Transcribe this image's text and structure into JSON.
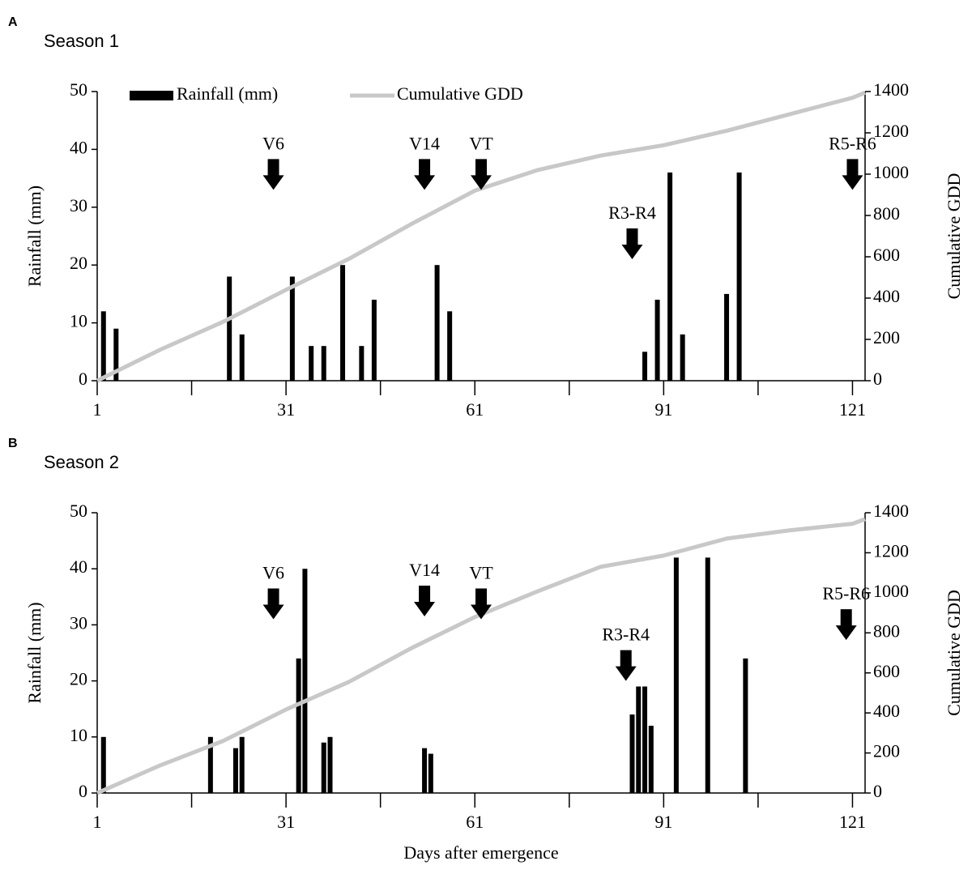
{
  "chart_data": [
    {
      "type": "bar",
      "panel_label": "A",
      "title": "Season 1",
      "y_label": "Rainfall (mm)",
      "y2_label": "Cumulative GDD",
      "xlim": [
        1,
        123
      ],
      "xticks": [
        1,
        31,
        61,
        91,
        121
      ],
      "xminorticks": [
        16,
        46,
        76,
        106
      ],
      "ylim": [
        0,
        50
      ],
      "yticks": [
        0,
        10,
        20,
        30,
        40,
        50
      ],
      "y2lim": [
        0,
        1400
      ],
      "y2ticks": [
        0,
        200,
        400,
        600,
        800,
        1000,
        1200,
        1400
      ],
      "series": [
        {
          "name": "Rainfall (mm)",
          "color": "#000000",
          "x": [
            2,
            4,
            22,
            24,
            32,
            35,
            37,
            40,
            43,
            45,
            55,
            57,
            88,
            90,
            92,
            94,
            101,
            103
          ],
          "values": [
            12,
            9,
            18,
            8,
            18,
            6,
            6,
            20,
            6,
            14,
            20,
            12,
            5,
            14,
            36,
            8,
            15,
            36
          ]
        },
        {
          "name": "Cumulative GDD",
          "color": "#c8c8c8",
          "axis": "y2",
          "x": [
            1,
            11,
            21,
            31,
            41,
            51,
            61,
            71,
            81,
            91,
            101,
            111,
            121,
            123
          ],
          "values": [
            0,
            150,
            285,
            440,
            590,
            760,
            920,
            1020,
            1090,
            1140,
            1210,
            1290,
            1370,
            1395
          ]
        }
      ],
      "annotations": [
        {
          "text": "V6",
          "x": 29,
          "y": 33
        },
        {
          "text": "V14",
          "x": 53,
          "y": 33
        },
        {
          "text": "VT",
          "x": 62,
          "y": 33
        },
        {
          "text": "R3-R4",
          "x": 86,
          "y": 21
        },
        {
          "text": "R5-R6",
          "x": 121,
          "y": 33
        }
      ]
    },
    {
      "type": "bar",
      "panel_label": "B",
      "title": "Season 2",
      "x_label": "Days after emergence",
      "y_label": "Rainfall (mm)",
      "y2_label": "Cumulative GDD",
      "xlim": [
        1,
        123
      ],
      "xticks": [
        1,
        31,
        61,
        91,
        121
      ],
      "xminorticks": [
        16,
        46,
        76,
        106
      ],
      "ylim": [
        0,
        50
      ],
      "yticks": [
        0,
        10,
        20,
        30,
        40,
        50
      ],
      "y2lim": [
        0,
        1400
      ],
      "y2ticks": [
        0,
        200,
        400,
        600,
        800,
        1000,
        1200,
        1400
      ],
      "series": [
        {
          "color": "#000000",
          "x": [
            2,
            19,
            23,
            24,
            33,
            34,
            37,
            38,
            53,
            54,
            86,
            87,
            88,
            89,
            93,
            98,
            104
          ],
          "values": [
            10,
            10,
            8,
            10,
            24,
            40,
            9,
            10,
            8,
            7,
            14,
            19,
            19,
            12,
            42,
            42,
            24
          ]
        },
        {
          "color": "#c8c8c8",
          "axis": "y2",
          "x": [
            1,
            11,
            21,
            31,
            41,
            51,
            61,
            71,
            81,
            91,
            101,
            111,
            121,
            123
          ],
          "values": [
            0,
            138,
            260,
            417,
            555,
            725,
            879,
            1008,
            1130,
            1186,
            1271,
            1312,
            1345,
            1368
          ]
        }
      ],
      "annotations": [
        {
          "text": "V6",
          "x": 29,
          "y": 31
        },
        {
          "text": "V14",
          "x": 53,
          "y": 31.5
        },
        {
          "text": "VT",
          "x": 62,
          "y": 31
        },
        {
          "text": "R3-R4",
          "x": 85,
          "y": 20
        },
        {
          "text": "R5-R6",
          "x": 120,
          "y": 27.3
        }
      ]
    }
  ]
}
